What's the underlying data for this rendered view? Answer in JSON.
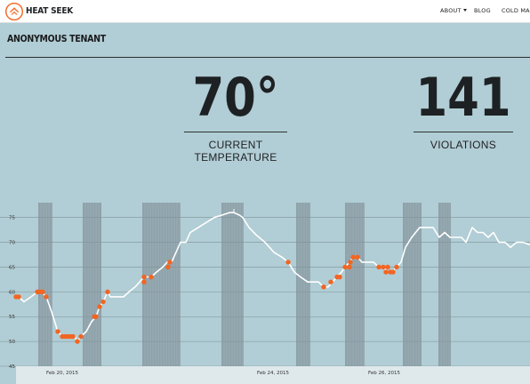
{
  "navbar": {
    "brand": "HEAT SEEK",
    "logo_icon": "flame-house-icon",
    "links": {
      "about": "ABOUT",
      "blog": "BLOG",
      "cold_map": "COLD MAP"
    }
  },
  "page": {
    "title": "ANONYMOUS TENANT",
    "current_temp": {
      "value": "70°",
      "label_line1": "CURRENT",
      "label_line2": "TEMPERATURE"
    },
    "violations": {
      "value": "141",
      "label": "VIOLATIONS"
    }
  },
  "colors": {
    "background": "#b1cdd5",
    "band": "#8fa2aa",
    "line": "#ffffff",
    "violation": "#f26522",
    "axis_strip": "#dfe9ec"
  },
  "chart_data": {
    "type": "line",
    "title": "",
    "xlabel": "",
    "ylabel": "",
    "y_ticks": [
      45,
      50,
      55,
      60,
      65,
      70,
      75
    ],
    "ylim": [
      45,
      78
    ],
    "xlim": [
      0,
      596
    ],
    "x_ticks": [
      {
        "x": 70,
        "label": "Feb 20, 2015"
      },
      {
        "x": 307,
        "label": "Feb 24, 2015"
      },
      {
        "x": 432,
        "label": "Feb 26, 2015"
      }
    ],
    "night_bands": [
      [
        43,
        59
      ],
      [
        93,
        114
      ],
      [
        160,
        203
      ],
      [
        249,
        274
      ],
      [
        333,
        349
      ],
      [
        388,
        410
      ],
      [
        453,
        474
      ],
      [
        493,
        507
      ]
    ],
    "series": [
      {
        "points": [
          [
            18,
            59
          ],
          [
            21,
            59
          ],
          [
            27,
            58
          ],
          [
            35,
            59
          ],
          [
            42,
            60
          ],
          [
            47,
            60
          ],
          [
            52,
            59
          ],
          [
            58,
            56
          ],
          [
            65,
            52
          ],
          [
            70,
            51
          ],
          [
            76,
            51
          ],
          [
            80,
            51
          ],
          [
            84,
            51
          ],
          [
            87,
            50
          ],
          [
            91,
            51
          ],
          [
            97,
            52
          ],
          [
            103,
            54
          ],
          [
            108,
            55
          ],
          [
            112,
            57
          ],
          [
            116,
            58
          ],
          [
            121,
            60
          ],
          [
            124,
            59
          ],
          [
            131,
            59
          ],
          [
            139,
            59
          ],
          [
            145,
            60
          ],
          [
            152,
            61
          ],
          [
            157,
            62
          ],
          [
            162,
            63
          ],
          [
            170,
            63
          ],
          [
            176,
            64
          ],
          [
            183,
            65
          ],
          [
            188,
            66
          ],
          [
            193,
            66
          ],
          [
            198,
            68
          ],
          [
            203,
            70
          ],
          [
            209,
            70
          ],
          [
            214,
            72
          ],
          [
            223,
            73
          ],
          [
            232,
            74
          ],
          [
            241,
            75
          ],
          [
            250,
            75.5
          ],
          [
            258,
            76
          ],
          [
            263,
            76
          ],
          [
            269,
            75.5
          ],
          [
            273,
            75
          ],
          [
            280,
            73
          ],
          [
            288,
            71.5
          ],
          [
            298,
            70
          ],
          [
            308,
            68
          ],
          [
            317,
            67
          ],
          [
            324,
            66
          ],
          [
            331,
            64
          ],
          [
            338,
            63
          ],
          [
            346,
            62
          ],
          [
            352,
            62
          ],
          [
            358,
            62
          ],
          [
            364,
            61
          ],
          [
            369,
            61
          ],
          [
            374,
            62
          ],
          [
            379,
            63
          ],
          [
            384,
            64
          ],
          [
            388,
            65
          ],
          [
            393,
            66
          ],
          [
            397,
            67
          ],
          [
            402,
            67
          ],
          [
            407,
            66
          ],
          [
            413,
            66
          ],
          [
            420,
            66
          ],
          [
            426,
            65
          ],
          [
            431,
            65
          ],
          [
            436,
            64
          ],
          [
            441,
            64
          ],
          [
            446,
            65
          ],
          [
            451,
            66
          ],
          [
            456,
            69
          ],
          [
            463,
            71
          ],
          [
            472,
            73
          ],
          [
            480,
            73
          ],
          [
            487,
            73
          ],
          [
            494,
            71
          ],
          [
            500,
            72
          ],
          [
            506,
            71
          ],
          [
            513,
            71
          ],
          [
            519,
            71
          ],
          [
            524,
            70
          ],
          [
            531,
            73
          ],
          [
            537,
            72
          ],
          [
            543,
            72
          ],
          [
            549,
            71
          ],
          [
            555,
            72
          ],
          [
            561,
            70
          ],
          [
            568,
            70
          ],
          [
            574,
            69
          ],
          [
            581,
            70
          ],
          [
            588,
            70
          ],
          [
            596,
            69.5
          ]
        ],
        "violations": [
          [
            18,
            59
          ],
          [
            21,
            59
          ],
          [
            42,
            60
          ],
          [
            45,
            60
          ],
          [
            48,
            60
          ],
          [
            52,
            59
          ],
          [
            65,
            52
          ],
          [
            70,
            51
          ],
          [
            73,
            51
          ],
          [
            76,
            51
          ],
          [
            79,
            51
          ],
          [
            82,
            51
          ],
          [
            87,
            50
          ],
          [
            91,
            51
          ],
          [
            106,
            55
          ],
          [
            108,
            55
          ],
          [
            112,
            57
          ],
          [
            116,
            58
          ],
          [
            121,
            60
          ],
          [
            162,
            62
          ],
          [
            162,
            63
          ],
          [
            170,
            63
          ],
          [
            189,
            65
          ],
          [
            191,
            66
          ],
          [
            324,
            66
          ],
          [
            364,
            61
          ],
          [
            372,
            62
          ],
          [
            379,
            63
          ],
          [
            382,
            63
          ],
          [
            388,
            65
          ],
          [
            393,
            65
          ],
          [
            394,
            66
          ],
          [
            397,
            67
          ],
          [
            402,
            67
          ],
          [
            426,
            65
          ],
          [
            431,
            65
          ],
          [
            434,
            64
          ],
          [
            436,
            65
          ],
          [
            439,
            64
          ],
          [
            442,
            64
          ],
          [
            446,
            65
          ]
        ]
      }
    ]
  }
}
